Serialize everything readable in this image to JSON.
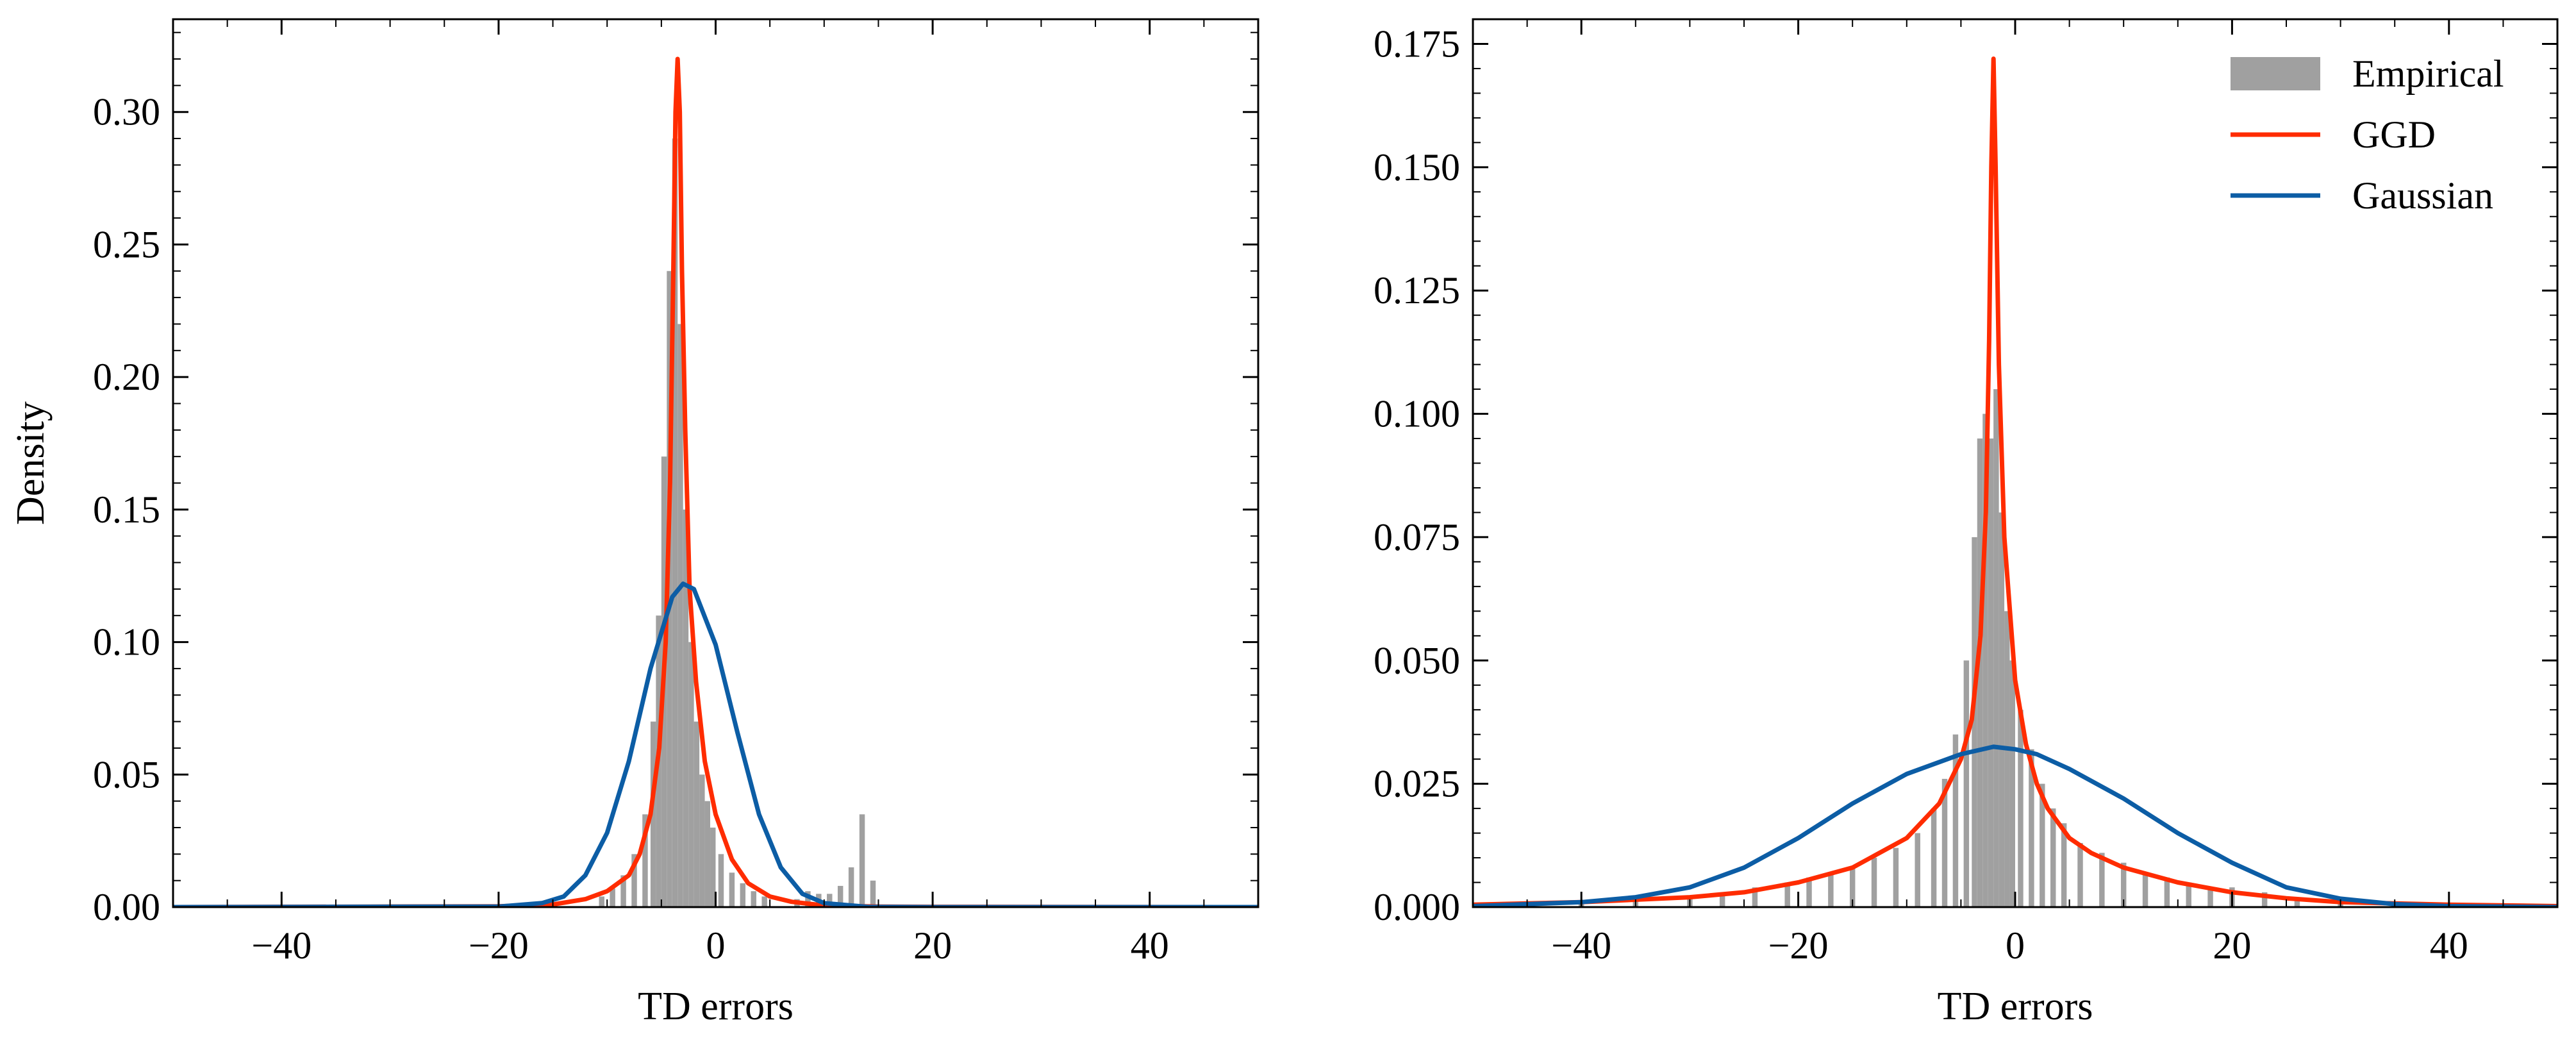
{
  "chart_data": [
    {
      "type": "histogram+line",
      "xlabel": "TD errors",
      "ylabel": "Density",
      "xlim": [
        -50,
        50
      ],
      "ylim": [
        0,
        0.335
      ],
      "xticks": [
        -40,
        -20,
        0,
        20,
        40
      ],
      "xtick_labels": [
        "−40",
        "−20",
        "0",
        "20",
        "40"
      ],
      "yticks": [
        0,
        0.05,
        0.1,
        0.15,
        0.2,
        0.25,
        0.3
      ],
      "ytick_labels": [
        "0.00",
        "0.05",
        "0.10",
        "0.15",
        "0.20",
        "0.25",
        "0.30"
      ],
      "legend": null,
      "series": [
        {
          "kind": "histogram",
          "color": "#a0a0a0",
          "bins": [
            {
              "x": -10.5,
              "y": 0.004
            },
            {
              "x": -9.5,
              "y": 0.007
            },
            {
              "x": -8.5,
              "y": 0.012
            },
            {
              "x": -7.5,
              "y": 0.02
            },
            {
              "x": -6.5,
              "y": 0.035
            },
            {
              "x": -5.75,
              "y": 0.07
            },
            {
              "x": -5.25,
              "y": 0.11
            },
            {
              "x": -4.75,
              "y": 0.17
            },
            {
              "x": -4.25,
              "y": 0.24
            },
            {
              "x": -3.75,
              "y": 0.29
            },
            {
              "x": -3.25,
              "y": 0.22
            },
            {
              "x": -2.75,
              "y": 0.15
            },
            {
              "x": -2.25,
              "y": 0.1
            },
            {
              "x": -1.75,
              "y": 0.07
            },
            {
              "x": -1.25,
              "y": 0.05
            },
            {
              "x": -0.75,
              "y": 0.04
            },
            {
              "x": -0.25,
              "y": 0.03
            },
            {
              "x": 0.5,
              "y": 0.02
            },
            {
              "x": 1.5,
              "y": 0.013
            },
            {
              "x": 2.5,
              "y": 0.009
            },
            {
              "x": 3.5,
              "y": 0.006
            },
            {
              "x": 4.5,
              "y": 0.004
            },
            {
              "x": 7.5,
              "y": 0.003
            },
            {
              "x": 8.5,
              "y": 0.006
            },
            {
              "x": 9.5,
              "y": 0.005
            },
            {
              "x": 10.5,
              "y": 0.005
            },
            {
              "x": 11.5,
              "y": 0.008
            },
            {
              "x": 12.5,
              "y": 0.015
            },
            {
              "x": 13.5,
              "y": 0.035
            },
            {
              "x": 14.5,
              "y": 0.01
            }
          ],
          "bin_width": 0.5
        },
        {
          "kind": "line",
          "color": "#ff2c00",
          "x": [
            -50,
            -20,
            -15,
            -12,
            -10,
            -8,
            -7,
            -6,
            -5.2,
            -4.6,
            -4.2,
            -3.9,
            -3.7,
            -3.5,
            -3.3,
            -3.1,
            -2.8,
            -2.4,
            -1.8,
            -1,
            0,
            1.5,
            3,
            5,
            7,
            10,
            15,
            20,
            50
          ],
          "y": [
            0,
            0.0003,
            0.001,
            0.003,
            0.006,
            0.012,
            0.02,
            0.035,
            0.06,
            0.1,
            0.16,
            0.24,
            0.3,
            0.32,
            0.3,
            0.24,
            0.18,
            0.12,
            0.085,
            0.055,
            0.035,
            0.018,
            0.009,
            0.004,
            0.002,
            0.0006,
            0.0002,
            0.0001,
            0
          ]
        },
        {
          "kind": "line",
          "color": "#0c5da5",
          "x": [
            -50,
            -20,
            -16,
            -14,
            -12,
            -10,
            -8,
            -6,
            -4,
            -3,
            -2,
            0,
            2,
            4,
            6,
            8,
            10,
            14,
            20,
            50
          ],
          "y": [
            0,
            0.0002,
            0.0015,
            0.004,
            0.012,
            0.028,
            0.055,
            0.09,
            0.117,
            0.122,
            0.12,
            0.099,
            0.066,
            0.035,
            0.015,
            0.005,
            0.0015,
            0.0001,
            0,
            0
          ]
        }
      ]
    },
    {
      "type": "histogram+line",
      "xlabel": "TD errors",
      "ylabel": "",
      "xlim": [
        -50,
        50
      ],
      "ylim": [
        0,
        0.18
      ],
      "xticks": [
        -40,
        -20,
        0,
        20,
        40
      ],
      "xtick_labels": [
        "−40",
        "−20",
        "0",
        "20",
        "40"
      ],
      "yticks": [
        0,
        0.025,
        0.05,
        0.075,
        0.1,
        0.125,
        0.15,
        0.175
      ],
      "ytick_labels": [
        "0.000",
        "0.025",
        "0.050",
        "0.075",
        "0.100",
        "0.125",
        "0.150",
        "0.175"
      ],
      "legend": {
        "placement": "top-right",
        "entries": [
          "Empirical",
          "GGD",
          "Gaussian"
        ]
      },
      "series": [
        {
          "kind": "histogram",
          "name": "Empirical",
          "color": "#a0a0a0",
          "bins": [
            {
              "x": -45,
              "y": 0.0005
            },
            {
              "x": -40,
              "y": 0.001
            },
            {
              "x": -35,
              "y": 0.0015
            },
            {
              "x": -30,
              "y": 0.002
            },
            {
              "x": -27,
              "y": 0.003
            },
            {
              "x": -24,
              "y": 0.004
            },
            {
              "x": -21,
              "y": 0.005
            },
            {
              "x": -19,
              "y": 0.006
            },
            {
              "x": -17,
              "y": 0.007
            },
            {
              "x": -15,
              "y": 0.008
            },
            {
              "x": -13,
              "y": 0.01
            },
            {
              "x": -11,
              "y": 0.012
            },
            {
              "x": -9,
              "y": 0.015
            },
            {
              "x": -7.5,
              "y": 0.02
            },
            {
              "x": -6.5,
              "y": 0.026
            },
            {
              "x": -5.5,
              "y": 0.035
            },
            {
              "x": -4.5,
              "y": 0.05
            },
            {
              "x": -3.75,
              "y": 0.075
            },
            {
              "x": -3.25,
              "y": 0.095
            },
            {
              "x": -2.75,
              "y": 0.1
            },
            {
              "x": -2.25,
              "y": 0.095
            },
            {
              "x": -1.75,
              "y": 0.105
            },
            {
              "x": -1.25,
              "y": 0.08
            },
            {
              "x": -0.75,
              "y": 0.06
            },
            {
              "x": -0.25,
              "y": 0.05
            },
            {
              "x": 0.5,
              "y": 0.04
            },
            {
              "x": 1.5,
              "y": 0.032
            },
            {
              "x": 2.5,
              "y": 0.025
            },
            {
              "x": 3.5,
              "y": 0.02
            },
            {
              "x": 4.5,
              "y": 0.017
            },
            {
              "x": 6,
              "y": 0.013
            },
            {
              "x": 8,
              "y": 0.011
            },
            {
              "x": 10,
              "y": 0.009
            },
            {
              "x": 12,
              "y": 0.007
            },
            {
              "x": 14,
              "y": 0.006
            },
            {
              "x": 16,
              "y": 0.005
            },
            {
              "x": 18,
              "y": 0.004
            },
            {
              "x": 20,
              "y": 0.004
            },
            {
              "x": 23,
              "y": 0.003
            },
            {
              "x": 26,
              "y": 0.002
            },
            {
              "x": 30,
              "y": 0.0015
            },
            {
              "x": 35,
              "y": 0.001
            },
            {
              "x": 40,
              "y": 0.0007
            },
            {
              "x": 45,
              "y": 0.0004
            }
          ],
          "bin_width": 0.5
        },
        {
          "kind": "line",
          "name": "GGD",
          "color": "#ff2c00",
          "x": [
            -50,
            -40,
            -30,
            -25,
            -20,
            -15,
            -10,
            -7,
            -5,
            -4,
            -3.2,
            -2.7,
            -2.4,
            -2.2,
            -2.0,
            -1.8,
            -1.5,
            -1,
            0,
            1,
            2,
            3,
            5,
            7,
            10,
            15,
            20,
            25,
            30,
            40,
            50
          ],
          "y": [
            0.0005,
            0.001,
            0.002,
            0.003,
            0.005,
            0.008,
            0.014,
            0.021,
            0.03,
            0.038,
            0.055,
            0.08,
            0.115,
            0.15,
            0.172,
            0.15,
            0.11,
            0.075,
            0.046,
            0.033,
            0.025,
            0.02,
            0.014,
            0.011,
            0.008,
            0.005,
            0.003,
            0.0018,
            0.001,
            0.0005,
            0.0002
          ]
        },
        {
          "kind": "line",
          "name": "Gaussian",
          "color": "#0c5da5",
          "x": [
            -50,
            -40,
            -35,
            -30,
            -25,
            -20,
            -15,
            -10,
            -5,
            -2,
            0,
            2,
            5,
            10,
            15,
            20,
            25,
            30,
            35,
            40,
            50
          ],
          "y": [
            0.0002,
            0.001,
            0.002,
            0.004,
            0.008,
            0.014,
            0.021,
            0.027,
            0.031,
            0.0325,
            0.032,
            0.031,
            0.028,
            0.022,
            0.015,
            0.009,
            0.004,
            0.0017,
            0.0006,
            0.0002,
            0
          ]
        }
      ]
    }
  ]
}
